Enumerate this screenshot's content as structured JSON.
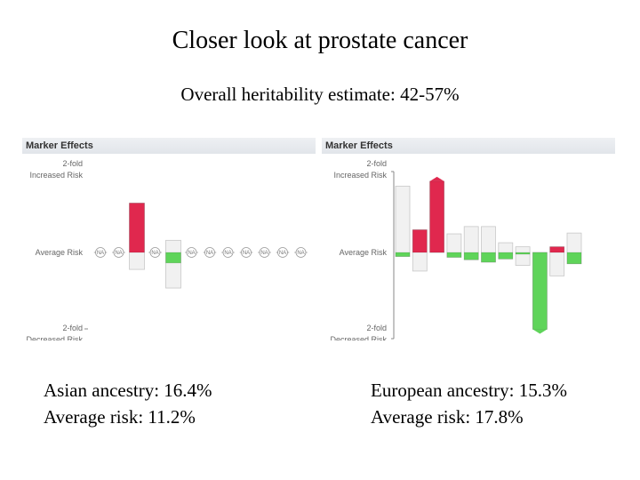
{
  "title": "Closer look at prostate cancer",
  "subtitle": "Overall heritability estimate: 42-57%",
  "colors": {
    "increased": "#e0284e",
    "decreased": "#5fd45a",
    "range_fill": "#f1f1f1",
    "range_stroke": "#c8c8c8",
    "axis": "#888888"
  },
  "chart_data": [
    {
      "type": "bar",
      "title": "Marker Effects",
      "axis_labels": {
        "top_line1": "2-fold",
        "top_line2": "Increased Risk",
        "middle": "Average Risk",
        "bottom_line1": "2-fold",
        "bottom_line2": "Decreased Risk"
      },
      "ylim": [
        -1,
        1
      ],
      "na_label": "NA",
      "markers": [
        {
          "na": true
        },
        {
          "na": true
        },
        {
          "value": 0.61,
          "range": [
            -0.21,
            0.61
          ]
        },
        {
          "na": true
        },
        {
          "value": -0.13,
          "range": [
            -0.44,
            0.15
          ]
        },
        {
          "na": true
        },
        {
          "na": true
        },
        {
          "na": true
        },
        {
          "na": true
        },
        {
          "na": true
        },
        {
          "na": true
        },
        {
          "na": true
        }
      ]
    },
    {
      "type": "bar",
      "title": "Marker Effects",
      "axis_labels": {
        "top_line1": "2-fold",
        "top_line2": "Increased Risk",
        "middle": "Average Risk",
        "bottom_line1": "2-fold",
        "bottom_line2": "Decreased Risk"
      },
      "ylim": [
        -1,
        1
      ],
      "na_label": "NA",
      "markers": [
        {
          "value": -0.05,
          "range": [
            -0.05,
            0.82
          ]
        },
        {
          "value": 0.28,
          "range": [
            -0.23,
            0.28
          ]
        },
        {
          "value": 0.88,
          "range": [
            0.0,
            0.88
          ]
        },
        {
          "value": -0.06,
          "range": [
            -0.06,
            0.23
          ]
        },
        {
          "value": -0.09,
          "range": [
            -0.09,
            0.32
          ]
        },
        {
          "value": -0.12,
          "range": [
            -0.12,
            0.32
          ]
        },
        {
          "value": -0.08,
          "range": [
            -0.08,
            0.12
          ]
        },
        {
          "value": -0.02,
          "range": [
            -0.16,
            0.07
          ]
        },
        {
          "value": -0.95,
          "range": [
            -0.95,
            0.0
          ]
        },
        {
          "value": 0.07,
          "range": [
            -0.29,
            0.07
          ]
        },
        {
          "value": -0.14,
          "range": [
            -0.14,
            0.24
          ]
        }
      ]
    }
  ],
  "captions": {
    "left_line1": "Asian ancestry: 16.4%",
    "left_line2": "Average risk: 11.2%",
    "right_line1": "European ancestry: 15.3%",
    "right_line2": "Average risk: 17.8%"
  }
}
